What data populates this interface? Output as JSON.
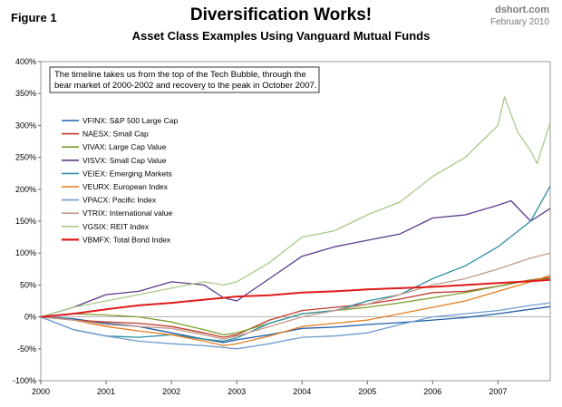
{
  "header": {
    "figure_label": "Figure 1",
    "title": "Diversification Works!",
    "subtitle": "Asset Class Examples Using Vanguard Mutual Funds",
    "source": "dshort.com",
    "date": "February 2010"
  },
  "chart_data": {
    "type": "line",
    "title": "Diversification Works!",
    "subtitle": "Asset Class Examples Using Vanguard Mutual Funds",
    "xlabel": "",
    "ylabel": "",
    "xlim": [
      2000.0,
      2007.8
    ],
    "ylim": [
      -100,
      400
    ],
    "yticks": [
      -100,
      -50,
      0,
      50,
      100,
      150,
      200,
      250,
      300,
      350,
      400
    ],
    "ytick_labels": [
      "-100%",
      "-50%",
      "0%",
      "50%",
      "100%",
      "150%",
      "200%",
      "250%",
      "300%",
      "350%",
      "400%"
    ],
    "xticks": [
      2000,
      2001,
      2002,
      2003,
      2004,
      2005,
      2006,
      2007
    ],
    "xtick_labels": [
      "2000",
      "2001",
      "2002",
      "2003",
      "2004",
      "2005",
      "2006",
      "2007"
    ],
    "grid": false,
    "legend_position": "upper-left",
    "annotation": [
      "The timeline takes us from the top of the Tech Bubble, through the",
      "bear market of 2000-2002 and recovery to the peak in October 2007."
    ],
    "series": [
      {
        "name": "VFINX: S&P 500 Large Cap",
        "color": "#1f5fa8",
        "x": [
          2000,
          2000.5,
          2001,
          2001.5,
          2002,
          2002.5,
          2002.8,
          2003,
          2003.5,
          2004,
          2004.5,
          2005,
          2005.5,
          2006,
          2006.5,
          2007,
          2007.5,
          2007.8
        ],
        "y": [
          0,
          -3,
          -10,
          -15,
          -25,
          -35,
          -40,
          -36,
          -28,
          -18,
          -16,
          -12,
          -9,
          -5,
          -1,
          5,
          12,
          16
        ]
      },
      {
        "name": "NAESX: Small Cap",
        "color": "#c0392b",
        "x": [
          2000,
          2000.5,
          2001,
          2001.5,
          2002,
          2002.5,
          2002.8,
          2003,
          2003.5,
          2004,
          2004.5,
          2005,
          2005.5,
          2006,
          2006.5,
          2007,
          2007.5,
          2007.8
        ],
        "y": [
          0,
          -5,
          -8,
          -10,
          -15,
          -25,
          -32,
          -28,
          -5,
          10,
          15,
          20,
          28,
          38,
          40,
          48,
          58,
          62
        ]
      },
      {
        "name": "VIVAX: Large Cap Value",
        "color": "#7a9e2e",
        "x": [
          2000,
          2000.5,
          2001,
          2001.5,
          2002,
          2002.5,
          2002.8,
          2003,
          2003.5,
          2004,
          2004.5,
          2005,
          2005.5,
          2006,
          2006.5,
          2007,
          2007.5,
          2007.8
        ],
        "y": [
          0,
          5,
          3,
          0,
          -8,
          -20,
          -28,
          -25,
          -10,
          5,
          10,
          15,
          22,
          30,
          38,
          48,
          58,
          60
        ]
      },
      {
        "name": "VISVX: Small Cap Value",
        "color": "#5b3a8c",
        "x": [
          2000,
          2000.5,
          2001,
          2001.5,
          2002,
          2002.5,
          2002.8,
          2003,
          2003.5,
          2004,
          2004.5,
          2005,
          2005.5,
          2006,
          2006.5,
          2007,
          2007.2,
          2007.5,
          2007.8
        ],
        "y": [
          0,
          15,
          35,
          40,
          55,
          50,
          30,
          25,
          60,
          95,
          110,
          120,
          130,
          155,
          160,
          175,
          182,
          150,
          170
        ]
      },
      {
        "name": "VEIEX: Emerging Markets",
        "color": "#2e8fa0",
        "x": [
          2000,
          2000.5,
          2001,
          2001.5,
          2002,
          2002.5,
          2002.8,
          2003,
          2003.5,
          2004,
          2004.5,
          2005,
          2005.5,
          2006,
          2006.5,
          2007,
          2007.5,
          2007.8
        ],
        "y": [
          0,
          -20,
          -30,
          -32,
          -28,
          -35,
          -38,
          -33,
          -10,
          5,
          10,
          25,
          35,
          60,
          80,
          110,
          150,
          205
        ]
      },
      {
        "name": "VEURX: European Index",
        "color": "#e67e22",
        "x": [
          2000,
          2000.5,
          2001,
          2001.5,
          2002,
          2002.5,
          2002.8,
          2003,
          2003.5,
          2004,
          2004.5,
          2005,
          2005.5,
          2006,
          2006.5,
          2007,
          2007.5,
          2007.8
        ],
        "y": [
          0,
          -5,
          -15,
          -22,
          -28,
          -38,
          -45,
          -42,
          -30,
          -15,
          -10,
          -5,
          5,
          15,
          25,
          40,
          55,
          65
        ]
      },
      {
        "name": "VPACX: Pacific Index",
        "color": "#6f9bd1",
        "x": [
          2000,
          2000.5,
          2001,
          2001.5,
          2002,
          2002.5,
          2002.8,
          2003,
          2003.5,
          2004,
          2004.5,
          2005,
          2005.5,
          2006,
          2006.5,
          2007,
          2007.5,
          2007.8
        ],
        "y": [
          0,
          -20,
          -30,
          -38,
          -42,
          -45,
          -48,
          -50,
          -42,
          -32,
          -30,
          -25,
          -12,
          0,
          5,
          10,
          18,
          22
        ]
      },
      {
        "name": "VTRIX: International value",
        "color": "#c49a8a",
        "x": [
          2000,
          2000.5,
          2001,
          2001.5,
          2002,
          2002.5,
          2002.8,
          2003,
          2003.5,
          2004,
          2004.5,
          2005,
          2005.5,
          2006,
          2006.5,
          2007,
          2007.5,
          2007.8
        ],
        "y": [
          0,
          -5,
          -12,
          -15,
          -18,
          -28,
          -35,
          -30,
          -15,
          0,
          10,
          20,
          35,
          50,
          60,
          75,
          92,
          100
        ]
      },
      {
        "name": "VGSIX: REIT Index",
        "color": "#a9c98a",
        "x": [
          2000,
          2000.5,
          2001,
          2001.5,
          2002,
          2002.5,
          2002.8,
          2003,
          2003.5,
          2004,
          2004.5,
          2005,
          2005.5,
          2006,
          2006.5,
          2007,
          2007.1,
          2007.3,
          2007.5,
          2007.6,
          2007.8
        ],
        "y": [
          0,
          15,
          25,
          35,
          45,
          55,
          50,
          55,
          85,
          125,
          135,
          160,
          180,
          220,
          250,
          300,
          345,
          290,
          260,
          240,
          305
        ]
      },
      {
        "name": "VBMFX: Total Bond Index",
        "color": "#e01b1b",
        "x": [
          2000,
          2000.5,
          2001,
          2001.5,
          2002,
          2002.5,
          2003,
          2003.5,
          2004,
          2004.5,
          2005,
          2005.5,
          2006,
          2006.5,
          2007,
          2007.5,
          2007.8
        ],
        "y": [
          0,
          5,
          12,
          18,
          22,
          27,
          32,
          34,
          38,
          40,
          43,
          45,
          47,
          50,
          53,
          56,
          58
        ]
      }
    ]
  }
}
